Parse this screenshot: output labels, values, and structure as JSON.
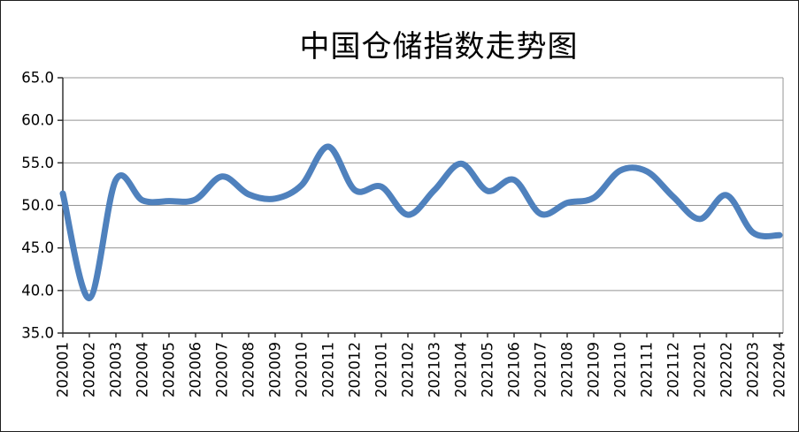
{
  "window": {
    "background": "#ffffff",
    "border_color": "#1f1f1f"
  },
  "chart_data": {
    "type": "line",
    "title": "中国仓储指数走势图",
    "categories": [
      "202001",
      "202002",
      "202003",
      "202004",
      "202005",
      "202006",
      "202007",
      "202008",
      "202009",
      "202010",
      "202011",
      "202012",
      "202101",
      "202102",
      "202103",
      "202104",
      "202105",
      "202106",
      "202107",
      "202108",
      "202109",
      "202110",
      "202111",
      "202112",
      "202201",
      "202202",
      "202203",
      "202204"
    ],
    "values": [
      51.4,
      39.1,
      53.0,
      50.6,
      50.5,
      50.7,
      53.4,
      51.3,
      50.8,
      52.4,
      56.9,
      51.8,
      52.2,
      48.9,
      51.8,
      54.9,
      51.7,
      53.0,
      49.0,
      50.3,
      50.9,
      54.1,
      54.0,
      51.0,
      48.4,
      51.2,
      46.8,
      46.5
    ],
    "xlabel": "",
    "ylabel": "",
    "ylim": [
      35.0,
      65.0
    ],
    "ytick_step": 5.0,
    "ytick_labels": [
      "65.0",
      "60.0",
      "55.0",
      "50.0",
      "45.0",
      "40.0",
      "35.0"
    ],
    "x_label_rotation": -90,
    "grid": "horizontal-major",
    "legend": "none",
    "smooth_line": true,
    "line_color": "#4F81BD",
    "line_width": 7,
    "gridline_color": "#959595",
    "axis_color": "#262626",
    "text_color": "#000000"
  }
}
